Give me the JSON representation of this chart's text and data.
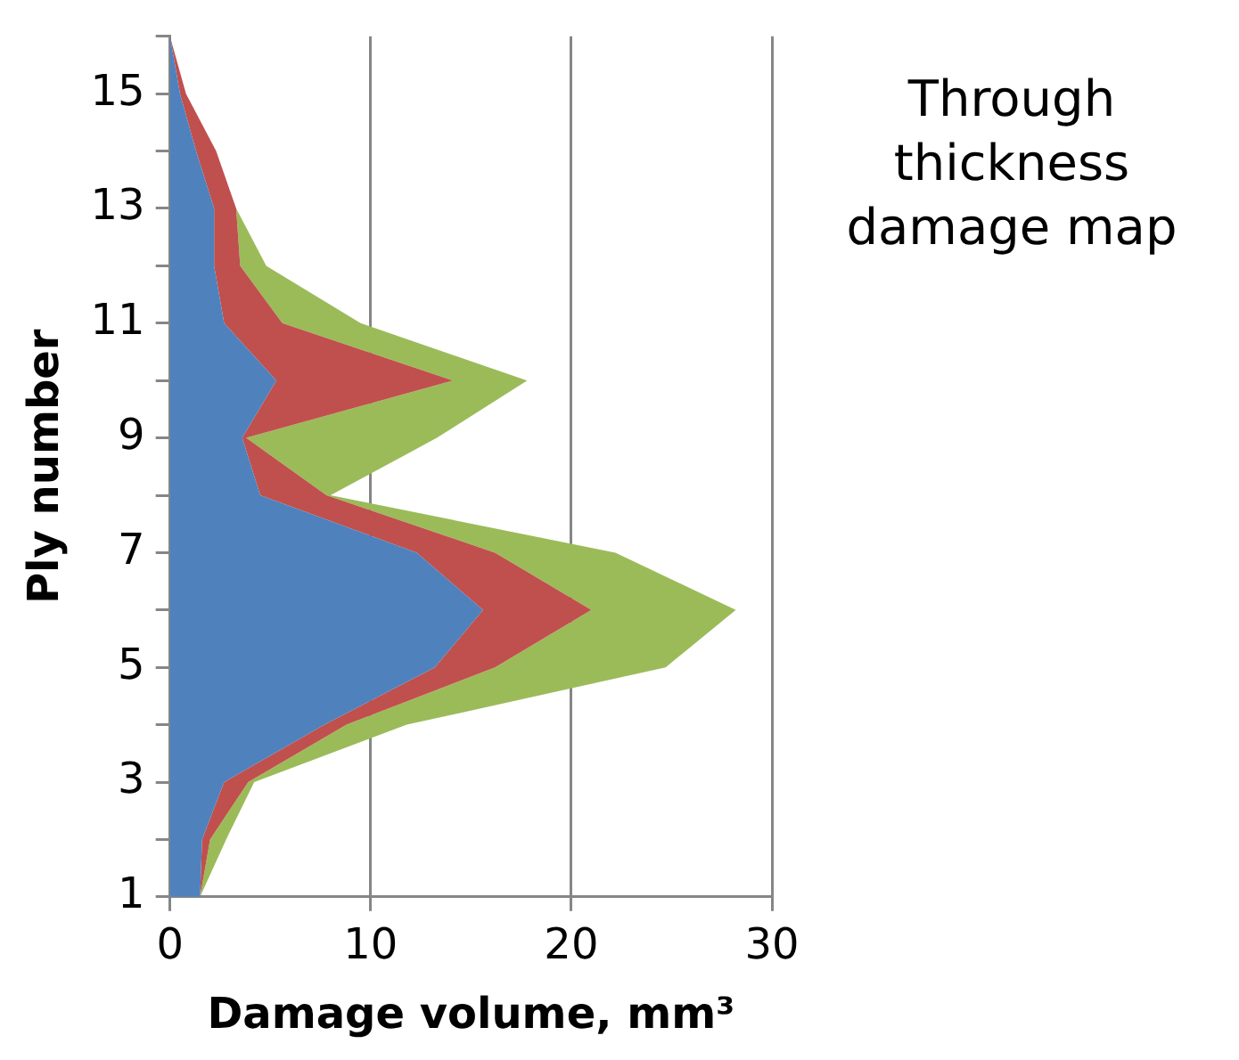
{
  "chart_data": {
    "type": "area",
    "title": "Through thickness damage map",
    "xlabel": "Damage volume, mm³",
    "ylabel": "Ply number",
    "orientation": "horizontal",
    "stacked": true,
    "legend": false,
    "grid": "x",
    "x": [
      1,
      2,
      3,
      4,
      5,
      6,
      7,
      8,
      9,
      10,
      11,
      12,
      13,
      14,
      15,
      16
    ],
    "series": [
      {
        "color": "#4f81bd",
        "values": [
          1.5,
          1.6,
          2.7,
          7.7,
          13.2,
          15.6,
          12.3,
          4.5,
          3.6,
          5.3,
          2.7,
          2.2,
          2.2,
          1.3,
          0.5,
          0
        ]
      },
      {
        "color": "#c0504d",
        "values": [
          0,
          0.4,
          1.2,
          1.1,
          3.0,
          5.4,
          3.9,
          3.3,
          0.2,
          8.8,
          2.9,
          1.3,
          1.1,
          1.0,
          0.3,
          0
        ]
      },
      {
        "color": "#9bbb59",
        "values": [
          0,
          0.8,
          0.3,
          3.0,
          8.5,
          7.2,
          6.0,
          0.2,
          9.5,
          3.7,
          3.9,
          1.3,
          0,
          null,
          null,
          null
        ]
      }
    ],
    "xlim": [
      0,
      30
    ],
    "xticks": [
      0,
      10,
      20,
      30
    ],
    "ylim": [
      1,
      16
    ],
    "yticks": [
      1,
      {
        "value": 2,
        "label": null
      },
      3,
      {
        "value": 4,
        "label": null
      },
      5,
      {
        "value": 6,
        "label": null
      },
      7,
      {
        "value": 8,
        "label": null
      },
      9,
      {
        "value": 10,
        "label": null
      },
      11,
      {
        "value": 12,
        "label": null
      },
      13,
      {
        "value": 14,
        "label": null
      },
      15,
      {
        "value": 16,
        "label": null
      }
    ]
  }
}
